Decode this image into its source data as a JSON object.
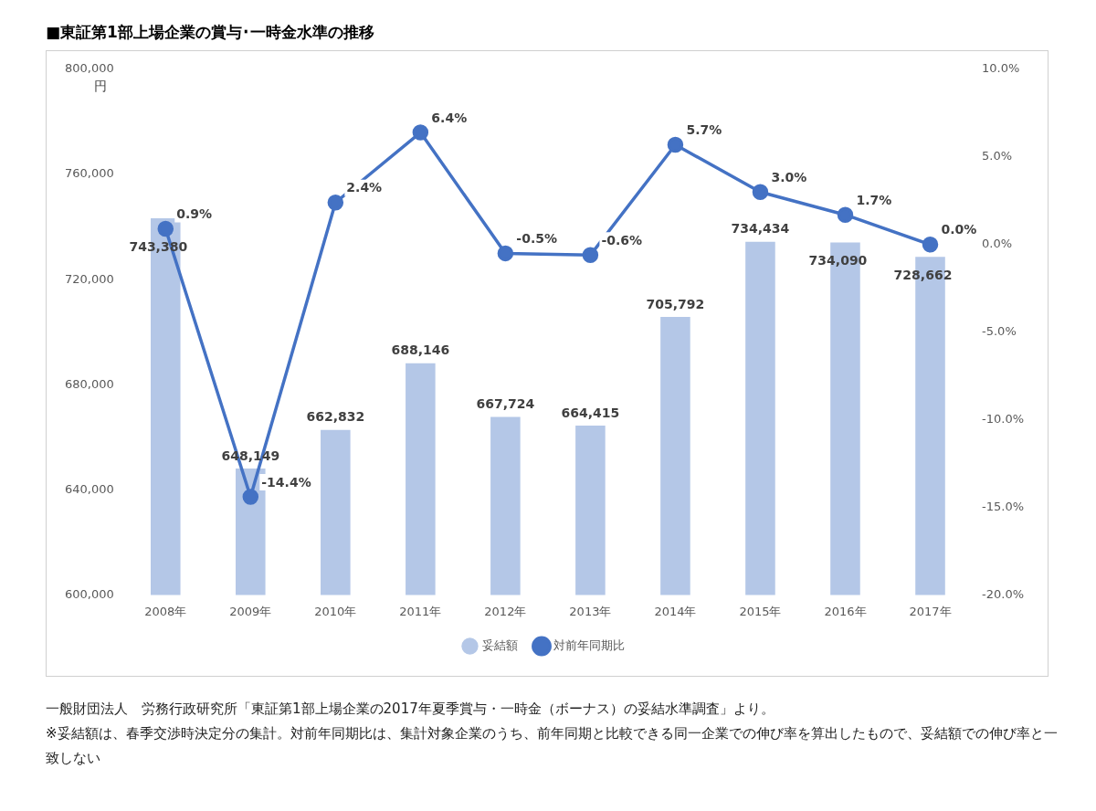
{
  "chart_data": {
    "type": "bar",
    "title": "■東証第1部上場企業の賞与･一時金水準の推移",
    "ylabel": "円",
    "categories": [
      "2008年",
      "2009年",
      "2010年",
      "2011年",
      "2012年",
      "2013年",
      "2014年",
      "2015年",
      "2016年",
      "2017年"
    ],
    "series": [
      {
        "name": "妥結額",
        "color": "#b4c7e7",
        "values": [
          743380,
          648149,
          662832,
          688146,
          667724,
          664415,
          705792,
          734434,
          734090,
          728662
        ],
        "value_labels": [
          "743,380",
          "648,149",
          "662,832",
          "688,146",
          "667,724",
          "664,415",
          "705,792",
          "734,434",
          "734,090",
          "728,662"
        ]
      },
      {
        "name": "対前年同期比",
        "type": "line",
        "axis": "y2",
        "color": "#4472c4",
        "values": [
          0.9,
          -14.4,
          2.4,
          6.4,
          -0.5,
          -0.6,
          5.7,
          3.0,
          1.7,
          0.0
        ],
        "value_labels": [
          "0.9%",
          "-14.4%",
          "2.4%",
          "6.4%",
          "-0.5%",
          "-0.6%",
          "5.7%",
          "3.0%",
          "1.7%",
          "0.0%"
        ]
      }
    ],
    "ylim": [
      600000,
      800000
    ],
    "yticks": [
      {
        "value": 600000,
        "label": "600,000"
      },
      {
        "value": 640000,
        "label": "640,000"
      },
      {
        "value": 680000,
        "label": "680,000"
      },
      {
        "value": 720000,
        "label": "720,000"
      },
      {
        "value": 760000,
        "label": "760,000"
      },
      {
        "value": 800000,
        "label": "800,000"
      }
    ],
    "y2lim": [
      -20,
      10
    ],
    "y2ticks": [
      {
        "value": -20,
        "label": "-20.0%"
      },
      {
        "value": -15,
        "label": "-15.0%"
      },
      {
        "value": -10,
        "label": "-10.0%"
      },
      {
        "value": -5,
        "label": "-5.0%"
      },
      {
        "value": 0,
        "label": "0.0%"
      },
      {
        "value": 5,
        "label": "5.0%"
      },
      {
        "value": 10,
        "label": "10.0%"
      }
    ],
    "legend": "bottom",
    "marker": "circle",
    "annotations": [
      "一般財団法人　労務行政研究所「東証第1部上場企業の2017年夏季賞与・一時金（ボーナス）の妥結水準調査」より。",
      "※妥結額は、春季交渉時決定分の集計。対前年同期比は、集計対象企業のうち、前年同期と比較できる同一企業での伸び率を算出したもので、妥結額での伸び率と一致しない"
    ]
  }
}
